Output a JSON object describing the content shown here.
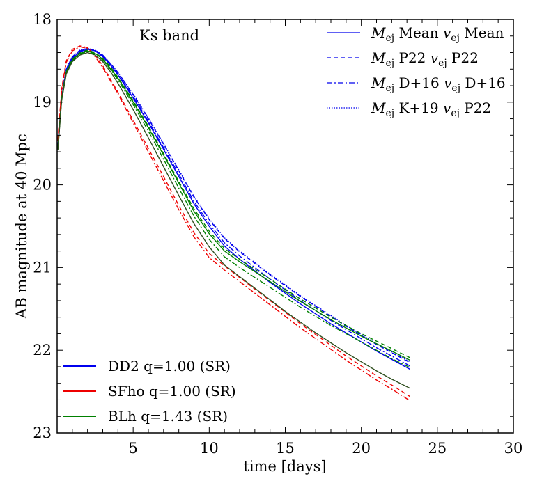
{
  "chart_data": {
    "type": "line",
    "annotation": "Ks band",
    "xlabel": "time [days]",
    "ylabel": "AB magnitude at 40 Mpc",
    "xlim": [
      0,
      30
    ],
    "ylim": [
      23,
      18
    ],
    "y_inverted": true,
    "xticks": [
      5,
      10,
      15,
      20,
      25,
      30
    ],
    "xtick_labels": [
      "5",
      "10",
      "15",
      "20",
      "25",
      "30"
    ],
    "yticks": [
      18,
      19,
      20,
      21,
      22,
      23
    ],
    "ytick_labels": [
      "18",
      "19",
      "20",
      "21",
      "22",
      "23"
    ],
    "grid": false,
    "legend_models": [
      {
        "pre": "M",
        "sub": "ej",
        "mid": " Mean ",
        "pre2": "v",
        "sub2": "ej",
        "post": " Mean",
        "dash": "solid"
      },
      {
        "pre": "M",
        "sub": "ej",
        "mid": " P22 ",
        "pre2": "v",
        "sub2": "ej",
        "post": " P22",
        "dash": "dashed"
      },
      {
        "pre": "M",
        "sub": "ej",
        "mid": " D+16 ",
        "pre2": "v",
        "sub2": "ej",
        "post": " D+16",
        "dash": "dashdot"
      },
      {
        "pre": "M",
        "sub": "ej",
        "mid": " K+19 ",
        "pre2": "v",
        "sub2": "ej",
        "post": " P22",
        "dash": "dotted"
      }
    ],
    "legend_models_placement": "top-right",
    "legend_eos_placement": "bottom-left",
    "legend_eos": [
      {
        "label": "DD2 q=1.00 (SR)",
        "color": "#0000ee"
      },
      {
        "label": "SFho q=1.00 (SR)",
        "color": "#ee0000"
      },
      {
        "label": "BLh q=1.43 (SR)",
        "color": "#008000"
      }
    ],
    "x": [
      0.05,
      0.3,
      0.6,
      1.0,
      1.5,
      2.0,
      2.5,
      3.0,
      3.5,
      4.0,
      5.0,
      6.0,
      7.0,
      8.0,
      9.0,
      10.0,
      11.0,
      12.0,
      13.0,
      14.0,
      15.0,
      16.0,
      17.0,
      18.0,
      19.0,
      20.0,
      21.0,
      22.0,
      23.2
    ],
    "series": [
      {
        "eos": "DD2",
        "model": "Mean",
        "color": "#0000ee",
        "dash": "solid",
        "values": [
          19.55,
          18.95,
          18.62,
          18.47,
          18.39,
          18.36,
          18.38,
          18.45,
          18.55,
          18.67,
          18.95,
          19.25,
          19.57,
          19.9,
          20.23,
          20.5,
          20.74,
          20.9,
          21.04,
          21.18,
          21.31,
          21.44,
          21.56,
          21.68,
          21.79,
          21.9,
          22.01,
          22.11,
          22.23
        ]
      },
      {
        "eos": "DD2",
        "model": "P22",
        "color": "#0000ee",
        "dash": "dashed",
        "values": [
          19.53,
          18.93,
          18.6,
          18.45,
          18.37,
          18.35,
          18.37,
          18.43,
          18.53,
          18.64,
          18.91,
          19.2,
          19.51,
          19.83,
          20.15,
          20.42,
          20.65,
          20.81,
          20.95,
          21.09,
          21.22,
          21.35,
          21.47,
          21.59,
          21.71,
          21.82,
          21.93,
          22.03,
          22.15
        ]
      },
      {
        "eos": "DD2",
        "model": "D+16",
        "color": "#0000ee",
        "dash": "dashdot",
        "values": [
          19.54,
          18.94,
          18.61,
          18.46,
          18.38,
          18.35,
          18.38,
          18.44,
          18.54,
          18.66,
          18.93,
          19.23,
          19.55,
          19.87,
          20.2,
          20.47,
          20.7,
          20.86,
          21.0,
          21.14,
          21.27,
          21.4,
          21.52,
          21.64,
          21.75,
          21.86,
          21.97,
          22.07,
          22.19
        ]
      },
      {
        "eos": "DD2",
        "model": "K+19",
        "color": "#0000ee",
        "dash": "dotted",
        "values": [
          19.53,
          18.93,
          18.6,
          18.45,
          18.37,
          18.35,
          18.37,
          18.43,
          18.53,
          18.64,
          18.9,
          19.19,
          19.5,
          19.82,
          20.14,
          20.41,
          20.64,
          20.8,
          20.94,
          21.08,
          21.21,
          21.34,
          21.46,
          21.58,
          21.7,
          21.81,
          21.92,
          22.02,
          22.14
        ]
      },
      {
        "eos": "SFho",
        "model": "P22",
        "color": "#ee0000",
        "dash": "dashed",
        "values": [
          19.45,
          18.84,
          18.5,
          18.36,
          18.32,
          18.34,
          18.43,
          18.56,
          18.72,
          18.88,
          19.22,
          19.56,
          19.9,
          20.25,
          20.58,
          20.83,
          20.98,
          21.12,
          21.26,
          21.4,
          21.54,
          21.68,
          21.81,
          21.94,
          22.07,
          22.19,
          22.31,
          22.42,
          22.56
        ]
      },
      {
        "eos": "SFho",
        "model": "D+16",
        "color": "#ee0000",
        "dash": "dashdot",
        "values": [
          19.47,
          18.86,
          18.52,
          18.38,
          18.33,
          18.35,
          18.45,
          18.58,
          18.74,
          18.9,
          19.25,
          19.6,
          19.95,
          20.3,
          20.63,
          20.88,
          21.03,
          21.17,
          21.31,
          21.45,
          21.59,
          21.73,
          21.86,
          21.99,
          22.12,
          22.24,
          22.36,
          22.47,
          22.61
        ]
      },
      {
        "eos": "BLh",
        "model": "Mean",
        "color": "#008000",
        "dash": "solid",
        "values": [
          19.56,
          18.96,
          18.64,
          18.49,
          18.41,
          18.38,
          18.41,
          18.48,
          18.59,
          18.71,
          19.0,
          19.31,
          19.64,
          19.98,
          20.32,
          20.59,
          20.8,
          20.93,
          21.05,
          21.17,
          21.29,
          21.41,
          21.52,
          21.63,
          21.73,
          21.83,
          21.92,
          22.01,
          22.12
        ]
      },
      {
        "eos": "BLh",
        "model": "P22",
        "color": "#008000",
        "dash": "dashed",
        "values": [
          19.55,
          18.95,
          18.63,
          18.48,
          18.4,
          18.37,
          18.4,
          18.47,
          18.57,
          18.7,
          18.98,
          19.29,
          19.62,
          19.96,
          20.29,
          20.56,
          20.77,
          20.9,
          21.02,
          21.14,
          21.26,
          21.38,
          21.49,
          21.6,
          21.7,
          21.8,
          21.89,
          21.98,
          22.09
        ]
      },
      {
        "eos": "BLh",
        "model": "D+16",
        "color": "#008000",
        "dash": "dashdot",
        "values": [
          19.57,
          18.97,
          18.65,
          18.5,
          18.42,
          18.39,
          18.42,
          18.49,
          18.6,
          18.73,
          19.03,
          19.35,
          19.69,
          20.04,
          20.38,
          20.66,
          20.87,
          21.0,
          21.12,
          21.24,
          21.36,
          21.48,
          21.59,
          21.7,
          21.8,
          21.9,
          22.0,
          22.1,
          22.21
        ]
      },
      {
        "eos": "BLh",
        "model": "Mean (dark)",
        "color": "#2f4f1f",
        "dash": "solid",
        "values": [
          19.58,
          18.98,
          18.66,
          18.51,
          18.43,
          18.4,
          18.43,
          18.51,
          18.63,
          18.77,
          19.09,
          19.43,
          19.78,
          20.13,
          20.47,
          20.75,
          20.97,
          21.11,
          21.25,
          21.39,
          21.53,
          21.66,
          21.79,
          21.91,
          22.03,
          22.14,
          22.25,
          22.35,
          22.46
        ]
      }
    ]
  }
}
